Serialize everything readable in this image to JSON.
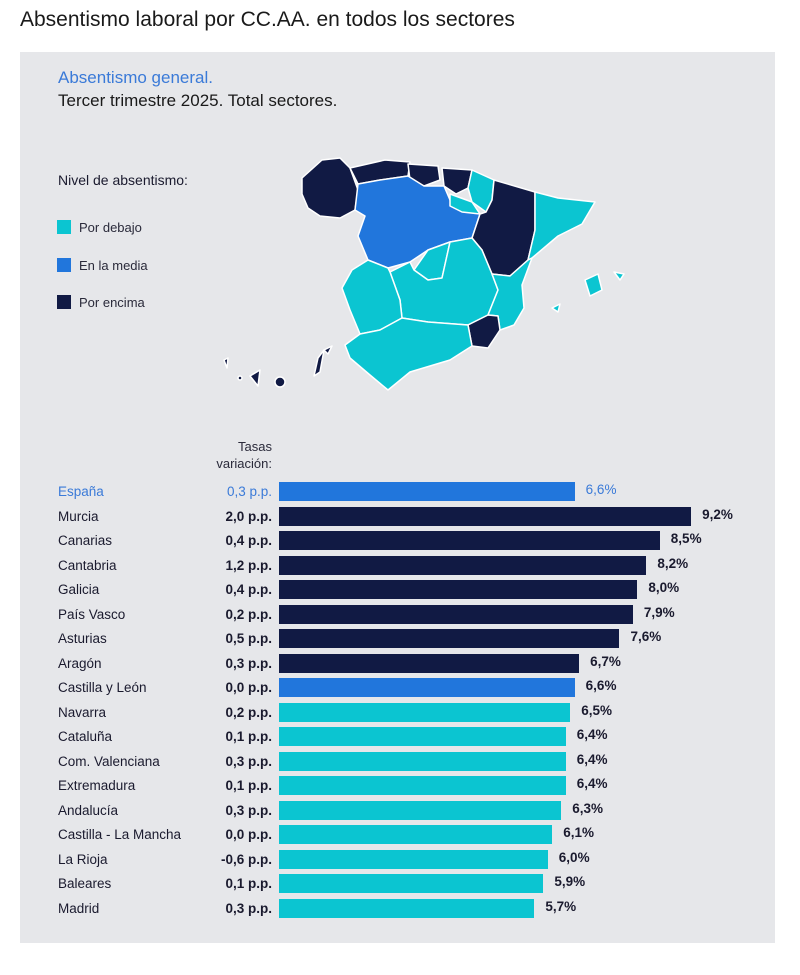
{
  "page": {
    "title": "Absentismo laboral por CC.AA. en todos los sectores"
  },
  "panel": {
    "subtitle_1": "Absentismo general.",
    "subtitle_2": "Tercer trimestre 2025. Total sectores."
  },
  "legend": {
    "title": "Nivel de absentismo:",
    "items": [
      {
        "label": "Por debajo",
        "color": "#0bc5d1"
      },
      {
        "label": "En la media",
        "color": "#2176dc"
      },
      {
        "label": "Por encima",
        "color": "#111a44"
      }
    ]
  },
  "map": {
    "description": "Mapa de España por comunidades autónomas coloreado por nivel de absentismo",
    "colors": {
      "below": "#0bc5d1",
      "average": "#2176dc",
      "above": "#111a44"
    }
  },
  "chart_data": {
    "type": "bar",
    "orientation": "horizontal",
    "title": "Absentismo general. Tercer trimestre 2025. Total sectores.",
    "column_header": "Tasas variación:",
    "value_unit": "%",
    "xlim": [
      0,
      9.2
    ],
    "grid": false,
    "legend_position": "top-left",
    "categories": [
      "España",
      "Murcia",
      "Canarias",
      "Cantabria",
      "Galicia",
      "País Vasco",
      "Asturias",
      "Aragón",
      "Castilla y León",
      "Navarra",
      "Cataluña",
      "Com. Valenciana",
      "Extremadura",
      "Andalucía",
      "Castilla - La Mancha",
      "La Rioja",
      "Baleares",
      "Madrid"
    ],
    "values": [
      6.6,
      9.2,
      8.5,
      8.2,
      8.0,
      7.9,
      7.6,
      6.7,
      6.6,
      6.5,
      6.4,
      6.4,
      6.4,
      6.3,
      6.1,
      6.0,
      5.9,
      5.7
    ],
    "value_labels": [
      "6,6%",
      "9,2%",
      "8,5%",
      "8,2%",
      "8,0%",
      "7,9%",
      "7,6%",
      "6,7%",
      "6,6%",
      "6,5%",
      "6,4%",
      "6,4%",
      "6,4%",
      "6,3%",
      "6,1%",
      "6,0%",
      "5,9%",
      "5,7%"
    ],
    "variation": [
      0.3,
      2.0,
      0.4,
      1.2,
      0.4,
      0.2,
      0.5,
      0.3,
      0.0,
      0.2,
      0.1,
      0.3,
      0.1,
      0.3,
      0.0,
      -0.6,
      0.1,
      0.3
    ],
    "variation_labels": [
      "0,3 p.p.",
      "2,0 p.p.",
      "0,4 p.p.",
      "1,2 p.p.",
      "0,4 p.p.",
      "0,2 p.p.",
      "0,5 p.p.",
      "0,3 p.p.",
      "0,0 p.p.",
      "0,2 p.p.",
      "0,1 p.p.",
      "0,3 p.p.",
      "0,1 p.p.",
      "0,3 p.p.",
      "0,0 p.p.",
      "-0,6 p.p.",
      "0,1 p.p.",
      "0,3 p.p."
    ],
    "levels": [
      "media",
      "encima",
      "encima",
      "encima",
      "encima",
      "encima",
      "encima",
      "encima",
      "media",
      "debajo",
      "debajo",
      "debajo",
      "debajo",
      "debajo",
      "debajo",
      "debajo",
      "debajo",
      "debajo"
    ],
    "highlight_index": 0,
    "highlight_color": "#3a7ad8"
  }
}
